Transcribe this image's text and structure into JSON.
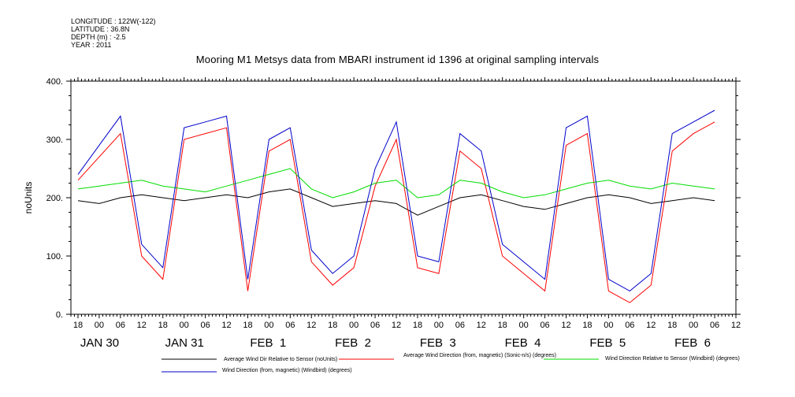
{
  "meta_lines": [
    "LONGITUDE : 122W(-122)",
    "LATITUDE : 36.8N",
    "DEPTH (m) : -2.5",
    "YEAR : 2011"
  ],
  "title": "Mooring M1 Metsys data from MBARI instrument id 1396 at original sampling intervals",
  "chart_data": {
    "type": "line",
    "title": "Mooring M1 Metsys data from MBARI instrument id 1396 at original sampling intervals",
    "xlabel": "",
    "ylabel": "noUnits",
    "ylim": [
      0,
      400
    ],
    "yticks": [
      "0.",
      "100.",
      "200.",
      "300.",
      "400."
    ],
    "x_hour_labels": [
      "18",
      "00",
      "06",
      "12",
      "18",
      "00",
      "06",
      "12",
      "18",
      "00",
      "06",
      "12",
      "18",
      "00",
      "06",
      "12",
      "18",
      "00",
      "06",
      "12",
      "18",
      "00",
      "06",
      "12",
      "18",
      "00",
      "06",
      "12",
      "18",
      "00",
      "06",
      "12"
    ],
    "x_day_labels": [
      "JAN 30",
      "JAN 31",
      "FEB  1",
      "FEB  2",
      "FEB  3",
      "FEB  4",
      "FEB  5",
      "FEB  6"
    ],
    "xlim_hours": [
      -8,
      180
    ],
    "grid": false,
    "legend_placement": "bottom",
    "series": [
      {
        "name": "Average Wind Dir Relative to Sensor (noUnits)",
        "color": "#000000",
        "x": [
          -6,
          0,
          6,
          12,
          18,
          24,
          30,
          36,
          42,
          48,
          54,
          60,
          66,
          72,
          78,
          84,
          90,
          96,
          102,
          108,
          114,
          120,
          126,
          132,
          138,
          144,
          150,
          156,
          162,
          168,
          174
        ],
        "y": [
          195,
          190,
          200,
          205,
          200,
          195,
          200,
          205,
          200,
          210,
          215,
          200,
          185,
          190,
          195,
          190,
          170,
          185,
          200,
          205,
          195,
          185,
          180,
          190,
          200,
          205,
          200,
          190,
          195,
          200,
          195
        ]
      },
      {
        "name": "Average Wind Direction (from, magnetic) (Sonic-n/s) (degrees)",
        "color": "#ff0000",
        "x": [
          -6,
          0,
          6,
          12,
          18,
          24,
          30,
          36,
          42,
          48,
          54,
          60,
          66,
          72,
          78,
          84,
          90,
          96,
          102,
          108,
          114,
          120,
          126,
          132,
          138,
          144,
          150,
          156,
          162,
          168,
          174
        ],
        "y": [
          230,
          270,
          310,
          100,
          60,
          300,
          310,
          320,
          40,
          280,
          300,
          90,
          50,
          80,
          220,
          300,
          80,
          70,
          280,
          250,
          100,
          70,
          40,
          290,
          310,
          40,
          20,
          50,
          280,
          310,
          330
        ]
      },
      {
        "name": "Wind Direction Relative to Sensor (Windbird) (degrees)",
        "color": "#00dd00",
        "x": [
          -6,
          0,
          6,
          12,
          18,
          24,
          30,
          36,
          42,
          48,
          54,
          60,
          66,
          72,
          78,
          84,
          90,
          96,
          102,
          108,
          114,
          120,
          126,
          132,
          138,
          144,
          150,
          156,
          162,
          168,
          174
        ],
        "y": [
          215,
          220,
          225,
          230,
          220,
          215,
          210,
          220,
          230,
          240,
          250,
          215,
          200,
          210,
          225,
          230,
          200,
          205,
          230,
          225,
          210,
          200,
          205,
          215,
          225,
          230,
          220,
          215,
          225,
          220,
          215
        ]
      },
      {
        "name": "Wind Direction (from, magnetic) (Windbird) (degrees)",
        "color": "#0000cc",
        "x": [
          -6,
          0,
          6,
          12,
          18,
          24,
          30,
          36,
          42,
          48,
          54,
          60,
          66,
          72,
          78,
          84,
          90,
          96,
          102,
          108,
          114,
          120,
          126,
          132,
          138,
          144,
          150,
          156,
          162,
          168,
          174
        ],
        "y": [
          240,
          290,
          340,
          120,
          80,
          320,
          330,
          340,
          60,
          300,
          320,
          110,
          70,
          100,
          250,
          330,
          100,
          90,
          310,
          280,
          120,
          90,
          60,
          320,
          340,
          60,
          40,
          70,
          310,
          330,
          350
        ]
      }
    ]
  }
}
